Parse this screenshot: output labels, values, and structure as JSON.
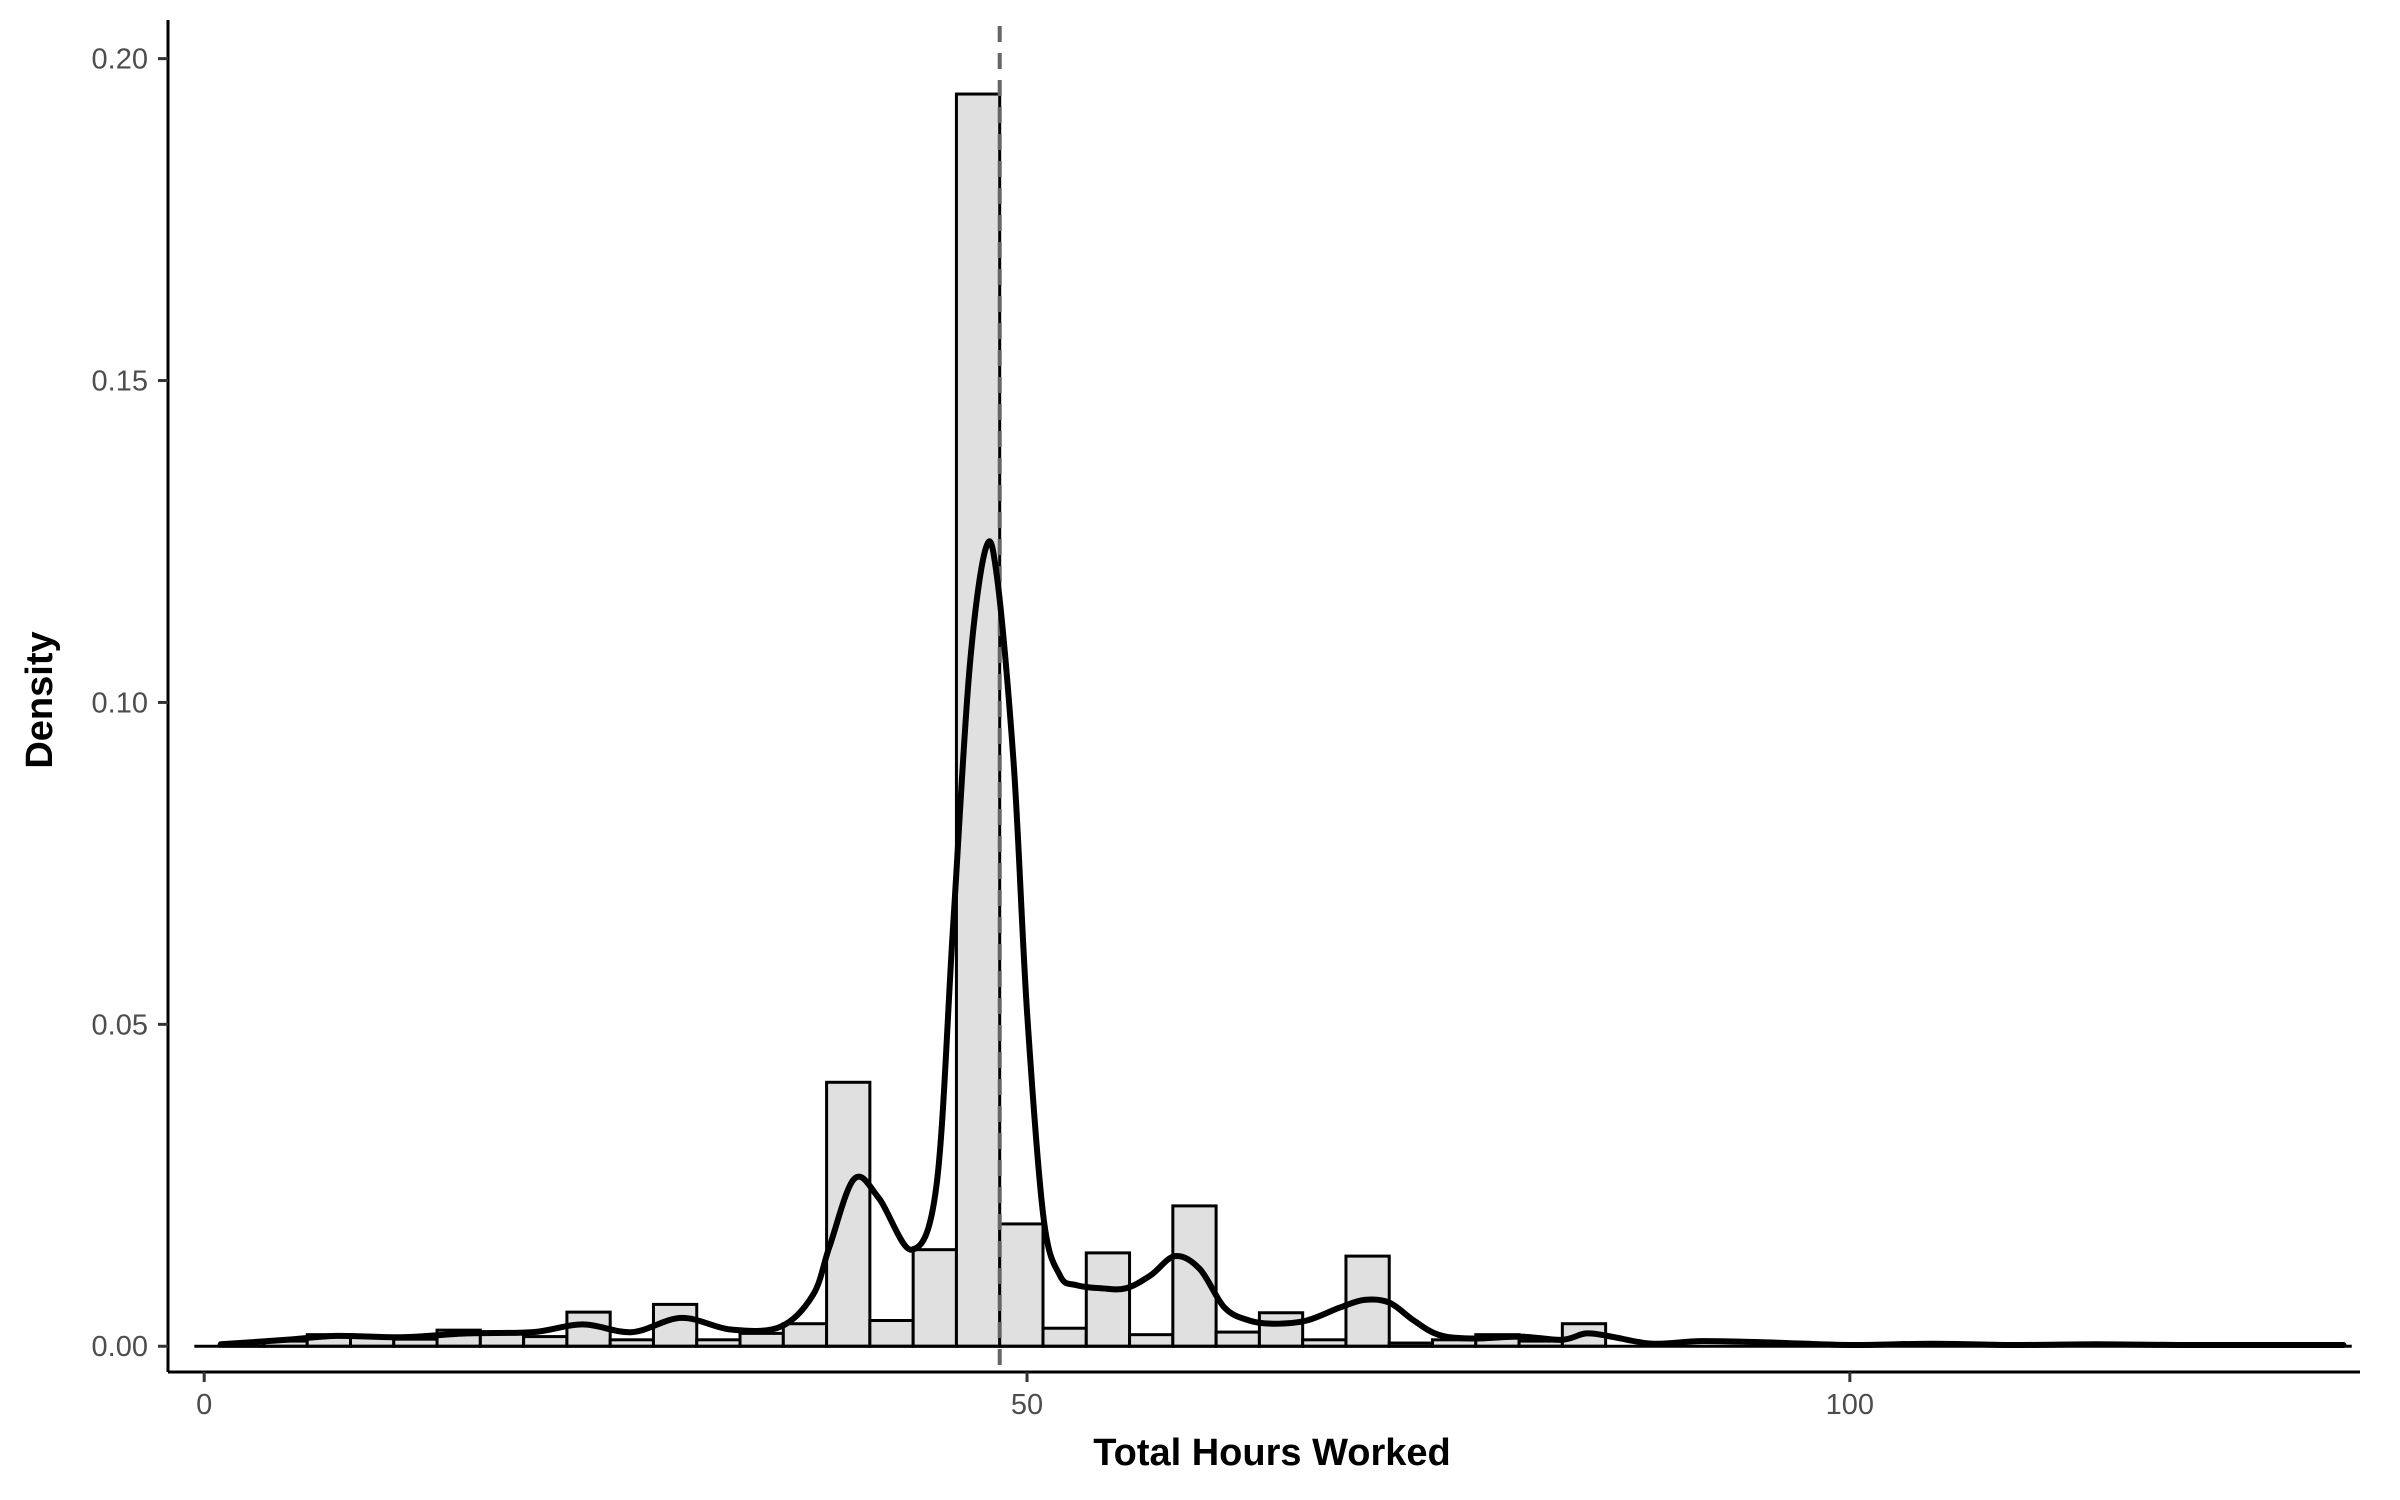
{
  "chart_data": {
    "type": "bar",
    "title": "",
    "xlabel": "Total Hours Worked",
    "ylabel": "Density",
    "xlim": [
      -2.2,
      131
    ],
    "ylim": [
      -0.004,
      0.206
    ],
    "x_ticks": [
      {
        "value": 0,
        "label": "0"
      },
      {
        "value": 50,
        "label": "50"
      },
      {
        "value": 100,
        "label": "100"
      }
    ],
    "y_ticks": [
      {
        "value": 0,
        "label": "0.00"
      },
      {
        "value": 0.05,
        "label": "0.05"
      },
      {
        "value": 0.1,
        "label": "0.10"
      },
      {
        "value": 0.15,
        "label": "0.15"
      },
      {
        "value": 0.2,
        "label": "0.20"
      }
    ],
    "grid": false,
    "legend": "none",
    "histogram": {
      "bin_width": 2.63,
      "fill": "#e0e0e0",
      "stroke": "#000000",
      "bins": [
        {
          "x0": 1.0,
          "x1": 3.63,
          "density": 0.0005
        },
        {
          "x0": 3.63,
          "x1": 6.26,
          "density": 0.0008
        },
        {
          "x0": 6.26,
          "x1": 8.89,
          "density": 0.0018
        },
        {
          "x0": 8.89,
          "x1": 11.52,
          "density": 0.0015
        },
        {
          "x0": 11.52,
          "x1": 14.15,
          "density": 0.0011
        },
        {
          "x0": 14.15,
          "x1": 16.78,
          "density": 0.0025
        },
        {
          "x0": 16.78,
          "x1": 19.41,
          "density": 0.0022
        },
        {
          "x0": 19.41,
          "x1": 22.04,
          "density": 0.0015
        },
        {
          "x0": 22.04,
          "x1": 24.67,
          "density": 0.0053
        },
        {
          "x0": 24.67,
          "x1": 27.3,
          "density": 0.001
        },
        {
          "x0": 27.3,
          "x1": 29.93,
          "density": 0.0065
        },
        {
          "x0": 29.93,
          "x1": 32.56,
          "density": 0.001
        },
        {
          "x0": 32.56,
          "x1": 35.19,
          "density": 0.002
        },
        {
          "x0": 35.19,
          "x1": 37.82,
          "density": 0.0035
        },
        {
          "x0": 37.82,
          "x1": 40.45,
          "density": 0.041
        },
        {
          "x0": 40.45,
          "x1": 43.08,
          "density": 0.004
        },
        {
          "x0": 43.08,
          "x1": 45.71,
          "density": 0.015
        },
        {
          "x0": 45.71,
          "x1": 48.34,
          "density": 0.1945
        },
        {
          "x0": 48.34,
          "x1": 50.97,
          "density": 0.019
        },
        {
          "x0": 50.97,
          "x1": 53.6,
          "density": 0.0028
        },
        {
          "x0": 53.6,
          "x1": 56.23,
          "density": 0.0145
        },
        {
          "x0": 56.23,
          "x1": 58.86,
          "density": 0.0018
        },
        {
          "x0": 58.86,
          "x1": 61.49,
          "density": 0.0218
        },
        {
          "x0": 61.49,
          "x1": 64.12,
          "density": 0.0022
        },
        {
          "x0": 64.12,
          "x1": 66.75,
          "density": 0.0052
        },
        {
          "x0": 66.75,
          "x1": 69.38,
          "density": 0.001
        },
        {
          "x0": 69.38,
          "x1": 72.01,
          "density": 0.014
        },
        {
          "x0": 72.01,
          "x1": 74.64,
          "density": 0.0005
        },
        {
          "x0": 74.64,
          "x1": 77.27,
          "density": 0.001
        },
        {
          "x0": 77.27,
          "x1": 79.9,
          "density": 0.0018
        },
        {
          "x0": 79.9,
          "x1": 82.53,
          "density": 0.0008
        },
        {
          "x0": 82.53,
          "x1": 85.16,
          "density": 0.0035
        }
      ]
    },
    "density_curve": {
      "name": "",
      "stroke": "#000000",
      "x": [
        1,
        5,
        8,
        12,
        16,
        20,
        23,
        26,
        29,
        32,
        35,
        37,
        38,
        39.5,
        41,
        43,
        44.5,
        45.5,
        46.5,
        47.5,
        48.2,
        49.2,
        50,
        51,
        52,
        53,
        54.5,
        56,
        57.5,
        59,
        60.5,
        62,
        63.5,
        65,
        67,
        69,
        70.5,
        72,
        73.5,
        75,
        77,
        80,
        82.5,
        84,
        85.5,
        88,
        91,
        95,
        100,
        105,
        110,
        115,
        120,
        125,
        130
      ],
      "y": [
        0.0003,
        0.001,
        0.0016,
        0.0014,
        0.002,
        0.0022,
        0.0034,
        0.0022,
        0.0044,
        0.0026,
        0.003,
        0.008,
        0.0155,
        0.026,
        0.023,
        0.015,
        0.025,
        0.065,
        0.105,
        0.124,
        0.119,
        0.09,
        0.052,
        0.02,
        0.011,
        0.0095,
        0.009,
        0.009,
        0.011,
        0.014,
        0.012,
        0.006,
        0.004,
        0.0035,
        0.004,
        0.006,
        0.0072,
        0.0068,
        0.004,
        0.0018,
        0.0012,
        0.0015,
        0.001,
        0.002,
        0.0015,
        0.0004,
        0.0008,
        0.0006,
        0.0002,
        0.0004,
        0.0002,
        0.0003,
        0.0002,
        0.0002,
        0.0002
      ]
    },
    "reference_line": {
      "x": 48.34,
      "style": "dashed",
      "stroke": "#666666"
    }
  }
}
